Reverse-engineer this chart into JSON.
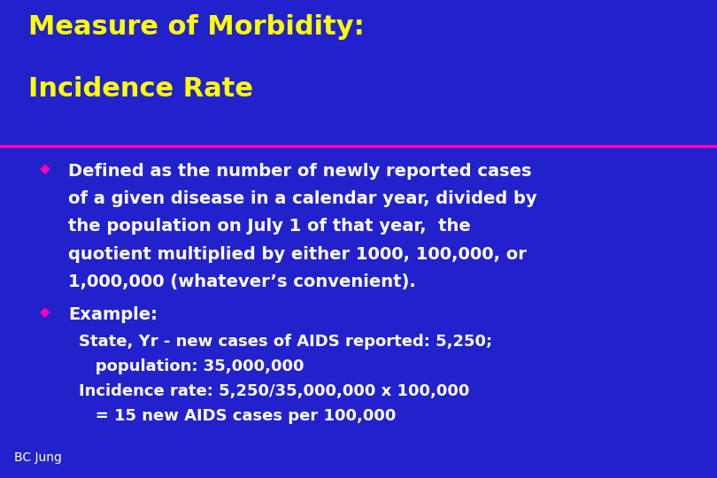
{
  "background_color": "#2222CC",
  "title_line1": "Measure of Morbidity:",
  "title_line2": "Incidence Rate",
  "title_color": "#FFFF00",
  "title_fontsize": 22,
  "divider_color": "#FF00BB",
  "bullet_color": "#FF00BB",
  "body_color": "#FFFFFF",
  "example_color": "#FFFFFF",
  "body_fontsize": 14,
  "small_fontsize": 13,
  "footer_text": "BC Jung",
  "footer_color": "#FFFFFF",
  "footer_fontsize": 10,
  "bullet1_lines": [
    "Defined as the number of newly reported cases",
    "of a given disease in a calendar year, divided by",
    "the population on July 1 of that year,  the",
    "quotient multiplied by either 1000, 100,000, or",
    "1,000,000 (whatever’s convenient)."
  ],
  "bullet2_header": "Example:",
  "sub_lines": [
    "State, Yr - new cases of AIDS reported: 5,250;",
    "   population: 35,000,000",
    "Incidence rate: 5,250/35,000,000 x 100,000",
    "   = 15 new AIDS cases per 100,000"
  ]
}
